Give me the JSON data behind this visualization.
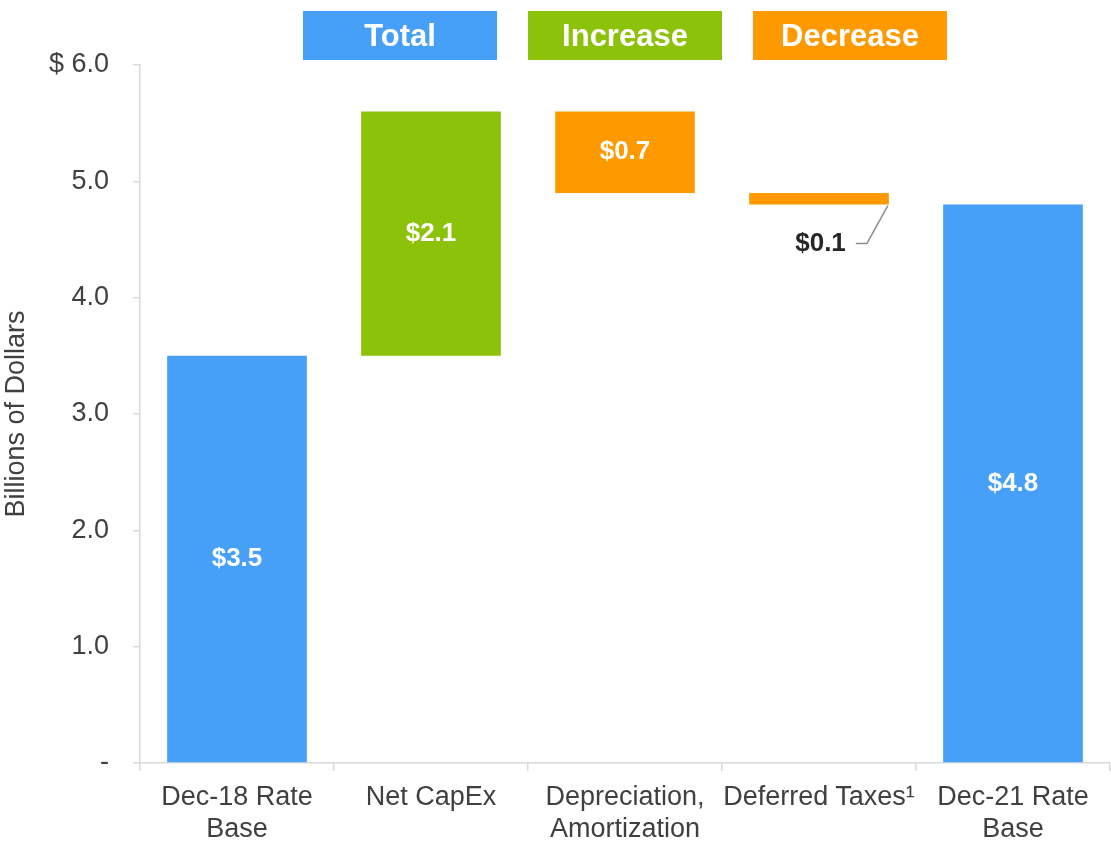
{
  "chart_data": {
    "type": "bar",
    "categories": [
      "Dec-18 Rate Base",
      "Net CapEx",
      "Depreciation, Amortization",
      "Deferred Taxes¹",
      "Dec-21 Rate Base"
    ],
    "series": [
      {
        "name": "Total",
        "color": "#47a0f7",
        "values": [
          3.5,
          null,
          null,
          null,
          4.8
        ],
        "base": [
          0,
          null,
          null,
          null,
          0
        ],
        "value_labels": [
          "$3.5",
          null,
          null,
          null,
          "$4.8"
        ]
      },
      {
        "name": "Increase",
        "color": "#8cc20a",
        "values": [
          null,
          2.1,
          null,
          null,
          null
        ],
        "base": [
          null,
          3.5,
          null,
          null,
          null
        ],
        "value_labels": [
          null,
          "$2.1",
          null,
          null,
          null
        ]
      },
      {
        "name": "Decrease",
        "color": "#ff9900",
        "values": [
          null,
          null,
          0.7,
          0.1,
          null
        ],
        "base": [
          null,
          null,
          4.9,
          4.8,
          null
        ],
        "value_labels": [
          null,
          null,
          "$0.7",
          "$0.1",
          null
        ]
      }
    ],
    "ylabel": "Billions of Dollars",
    "ylim": [
      0,
      6
    ],
    "yticks": [
      {
        "value": 0,
        "label": "-"
      },
      {
        "value": 1,
        "label": "1.0"
      },
      {
        "value": 2,
        "label": "2.0"
      },
      {
        "value": 3,
        "label": "3.0"
      },
      {
        "value": 4,
        "label": "4.0"
      },
      {
        "value": 5,
        "label": "5.0"
      },
      {
        "value": 6,
        "label": "$ 6.0"
      }
    ],
    "grid": false,
    "legend": "top"
  }
}
